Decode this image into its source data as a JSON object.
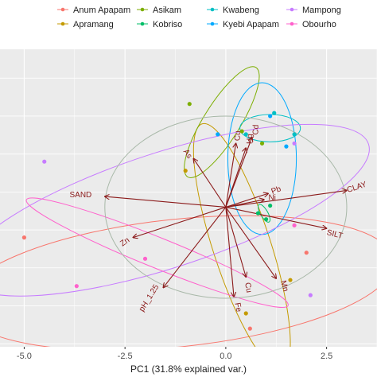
{
  "chart_data": {
    "type": "scatter",
    "title": "",
    "xlabel": "PC1 (31.8% explained var.)",
    "ylabel": "",
    "xlim": [
      -5.6,
      3.75
    ],
    "ylim": [
      -4.6,
      5.2
    ],
    "x_ticks": [
      -5.0,
      -2.5,
      0.0,
      2.5
    ],
    "x_tick_labels": [
      "-5.0",
      "-2.5",
      "0.0",
      "2.5"
    ],
    "grid": true,
    "legend_position": "top",
    "colors": {
      "panel_background": "#ebebeb",
      "grid_major": "#ffffff",
      "arrows": "#8b1a1a",
      "circle": "#a8b8a8"
    },
    "series": [
      {
        "name": "Anum Apapam",
        "color": "#f8766d",
        "points": [
          [
            -5.0,
            -1.0
          ],
          [
            2.0,
            -1.5
          ],
          [
            0.6,
            -4.0
          ]
        ],
        "ellipse": {
          "cx": -1.2,
          "cy": -2.5,
          "rx": 5.4,
          "ry": 2.1,
          "angle": -6
        }
      },
      {
        "name": "Apramang",
        "color": "#c49a00",
        "points": [
          [
            -1.0,
            1.2
          ],
          [
            1.6,
            -2.4
          ],
          [
            0.5,
            -3.5
          ]
        ],
        "ellipse": {
          "cx": 0.4,
          "cy": -1.3,
          "rx": 3.2,
          "ry": 0.95,
          "angle": 72
        }
      },
      {
        "name": "Asikam",
        "color": "#7cae00",
        "points": [
          [
            -0.9,
            3.4
          ],
          [
            0.4,
            2.5
          ],
          [
            0.9,
            2.1
          ]
        ],
        "ellipse": {
          "cx": -0.1,
          "cy": 2.8,
          "rx": 1.6,
          "ry": 0.6,
          "angle": -58
        }
      },
      {
        "name": "Kobriso",
        "color": "#00be67",
        "points": [
          [
            1.1,
            0.05
          ],
          [
            0.8,
            -0.2
          ],
          [
            1.0,
            -0.4
          ]
        ],
        "ellipse": {
          "cx": 0.95,
          "cy": -0.2,
          "rx": 0.25,
          "ry": 0.12,
          "angle": 60
        }
      },
      {
        "name": "Kwabeng",
        "color": "#00bfc4",
        "points": [
          [
            0.5,
            2.4
          ],
          [
            1.7,
            2.4
          ],
          [
            1.2,
            3.1
          ]
        ],
        "ellipse": {
          "cx": 1.1,
          "cy": 2.6,
          "rx": 0.75,
          "ry": 0.45,
          "angle": 0
        }
      },
      {
        "name": "Kyebi Apapam",
        "color": "#00a9ff",
        "points": [
          [
            1.1,
            3.0
          ],
          [
            -0.2,
            2.4
          ],
          [
            1.5,
            2.0
          ]
        ],
        "ellipse": {
          "cx": 0.9,
          "cy": 1.6,
          "rx": 0.85,
          "ry": 2.5,
          "angle": 0
        }
      },
      {
        "name": "Mampong",
        "color": "#c77cff",
        "points": [
          [
            -4.5,
            1.5
          ],
          [
            2.1,
            -2.9
          ],
          [
            1.7,
            2.1
          ]
        ],
        "ellipse": {
          "cx": -1.5,
          "cy": -0.1,
          "rx": 5.3,
          "ry": 1.9,
          "angle": -18
        }
      },
      {
        "name": "Obourho",
        "color": "#ff61cc",
        "points": [
          [
            -3.7,
            -2.6
          ],
          [
            -2.0,
            -1.7
          ],
          [
            1.7,
            -0.6
          ]
        ],
        "ellipse": {
          "cx": -1.7,
          "cy": -1.5,
          "rx": 3.5,
          "ry": 0.5,
          "angle": 22
        }
      }
    ],
    "circle": {
      "cx": 0.0,
      "cy": 0.0,
      "r": 3.0
    },
    "loadings": [
      {
        "label": "SAND",
        "x": -3.0,
        "y": 0.35,
        "label_x": -3.6,
        "label_y": 0.4,
        "rotate": 0
      },
      {
        "label": "CLAY",
        "x": 3.0,
        "y": 0.55,
        "label_x": 3.25,
        "label_y": 0.65,
        "rotate": -18
      },
      {
        "label": "SILT",
        "x": 2.5,
        "y": -0.7,
        "label_x": 2.7,
        "label_y": -0.9,
        "rotate": 14
      },
      {
        "label": "Zn",
        "x": -2.3,
        "y": -1.0,
        "label_x": -2.5,
        "label_y": -1.15,
        "rotate": -35
      },
      {
        "label": "pH_1.25",
        "x": -1.55,
        "y": -2.65,
        "label_x": -1.9,
        "label_y": -3.0,
        "rotate": -58
      },
      {
        "label": "As",
        "x": -0.8,
        "y": 1.6,
        "label_x": -0.95,
        "label_y": 1.75,
        "rotate": 55
      },
      {
        "label": "Cu",
        "x": 0.25,
        "y": 2.1,
        "label_x": 0.3,
        "label_y": 2.35,
        "rotate": -88
      },
      {
        "label": "Hg",
        "x": 0.5,
        "y": 1.95,
        "label_x": 0.6,
        "label_y": 2.25,
        "rotate": -88
      },
      {
        "label": "Cd",
        "x": 0.65,
        "y": 2.3,
        "label_x": 0.75,
        "label_y": 2.55,
        "rotate": -88
      },
      {
        "label": "Pb",
        "x": 1.05,
        "y": 0.45,
        "label_x": 1.25,
        "label_y": 0.55,
        "rotate": -20
      },
      {
        "label": "Ni",
        "x": 0.95,
        "y": 0.25,
        "label_x": 1.15,
        "label_y": 0.3,
        "rotate": 0
      },
      {
        "label": "Fe",
        "x": 0.2,
        "y": -2.95,
        "label_x": 0.3,
        "label_y": -3.3,
        "rotate": 80
      },
      {
        "label": "Mn",
        "x": 1.25,
        "y": -2.35,
        "label_x": 1.45,
        "label_y": -2.6,
        "rotate": 75
      },
      {
        "label": "Cu",
        "x": 0.5,
        "y": -2.3,
        "label_x": 0.55,
        "label_y": -2.65,
        "rotate": 80
      }
    ]
  }
}
